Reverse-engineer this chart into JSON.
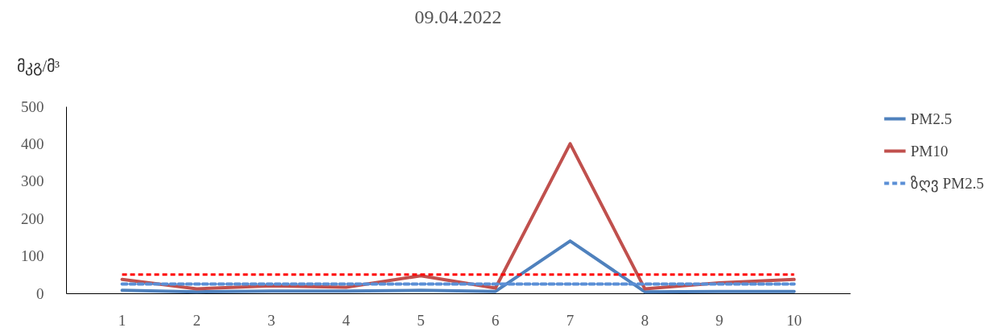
{
  "chart_data": {
    "type": "line",
    "title": "09.04.2022",
    "ylabel": "მკგ/მ³",
    "categories": [
      "1",
      "2",
      "3",
      "4",
      "5",
      "6",
      "7",
      "8",
      "9",
      "10"
    ],
    "series": [
      {
        "name": "PM2.5",
        "color": "#4f81bd",
        "values": [
          8,
          4,
          6,
          6,
          8,
          5,
          140,
          4,
          5,
          5
        ]
      },
      {
        "name": "PM10",
        "color": "#c0504d",
        "values": [
          37,
          12,
          20,
          16,
          47,
          14,
          400,
          12,
          28,
          37
        ]
      },
      {
        "name": "ზღვ PM2.5",
        "color": "#5b8fd6",
        "line_style": "dashed",
        "values": [
          25,
          25,
          25,
          25,
          25,
          25,
          25,
          25,
          25,
          25
        ]
      }
    ],
    "ref_lines": [
      {
        "axis": "y",
        "value": 50,
        "color": "#ff0000",
        "line_style": "dashed"
      }
    ],
    "ylim": [
      0,
      500
    ],
    "yticks": [
      0,
      100,
      200,
      300,
      400,
      500
    ],
    "grid": false,
    "legend": "right"
  }
}
